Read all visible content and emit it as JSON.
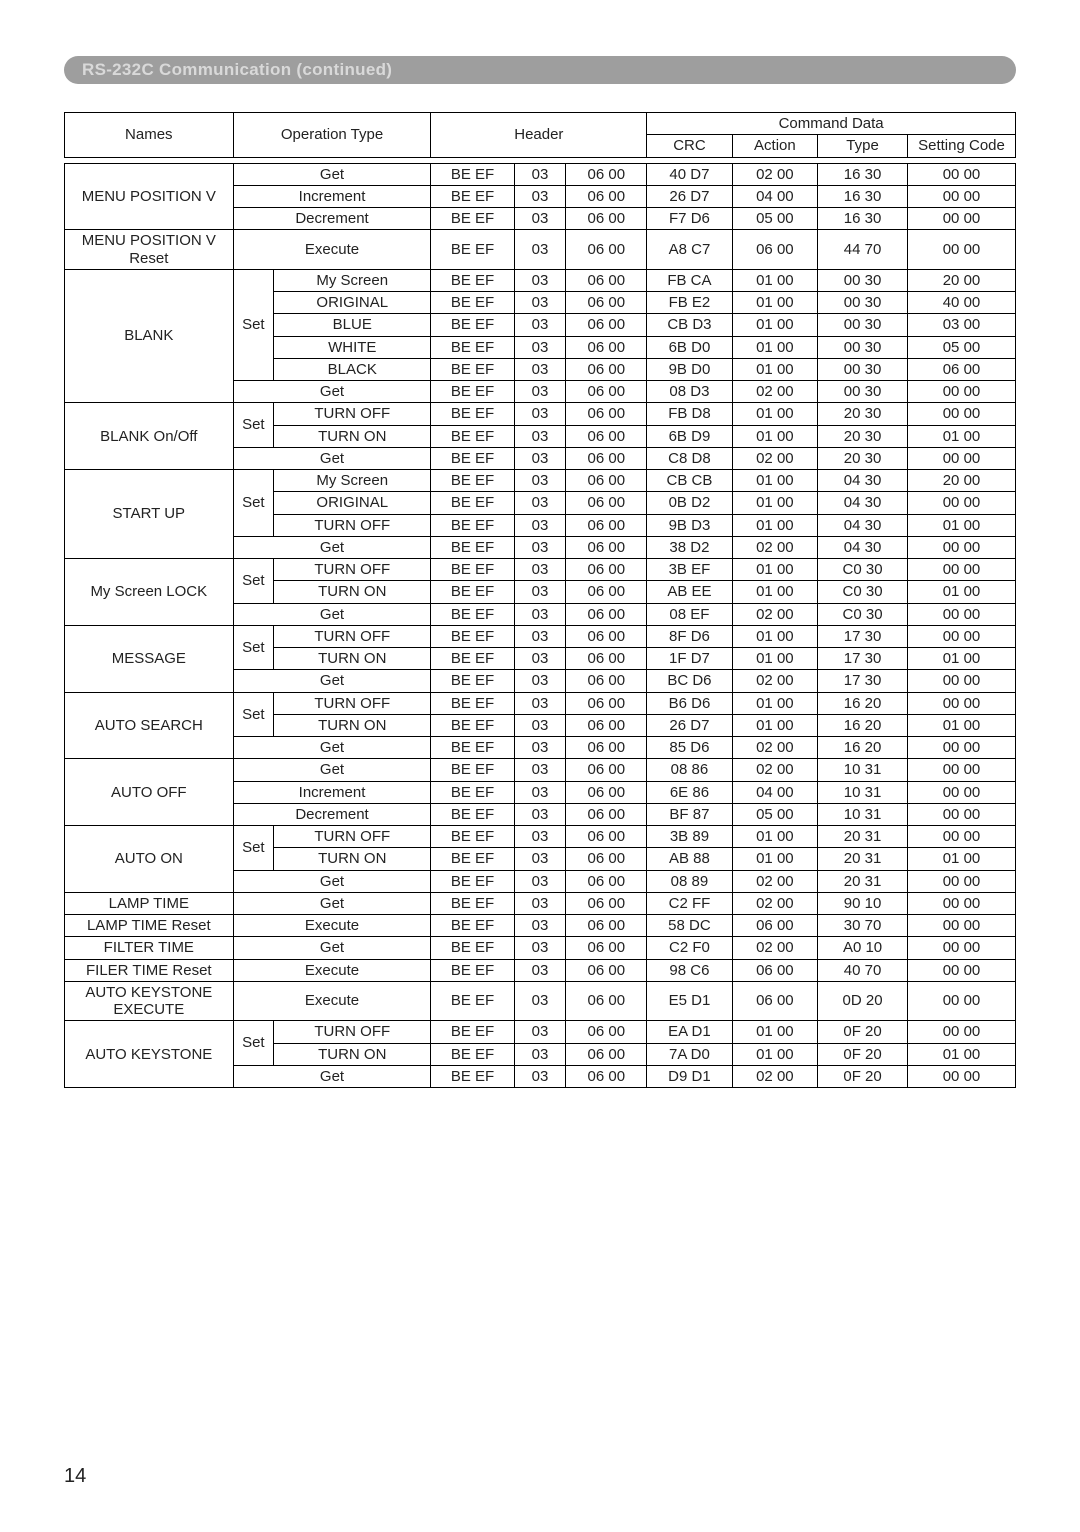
{
  "title": "RS-232C Communication (continued)",
  "pageNumber": "14",
  "columns": {
    "names": "Names",
    "operationType": "Operation Type",
    "header": "Header",
    "commandData": "Command Data",
    "crc": "CRC",
    "action": "Action",
    "type": "Type",
    "settingCode": "Setting Code"
  },
  "colWidths": {
    "names": 150,
    "opset": 36,
    "opval": 140,
    "h1": 74,
    "h2": 46,
    "h3": 72,
    "crc": 76,
    "action": 76,
    "type": 80,
    "settingCode": 96
  },
  "colors": {
    "barBg": "#9e9e9e",
    "barText": "#d9d9d9",
    "border": "#000000",
    "pageBg": "#ffffff",
    "text": "#222222"
  },
  "typography": {
    "titleFontSize": 17,
    "titleFontWeight": "bold",
    "tableFontSize": 15,
    "pageNumFontSize": 20,
    "fontFamily": "Arial"
  },
  "groups": [
    {
      "name": "MENU POSITION V",
      "rows": [
        {
          "opFull": "Get",
          "h1": "BE  EF",
          "h2": "03",
          "h3": "06  00",
          "crc": "40  D7",
          "action": "02  00",
          "type": "16  30",
          "set": "00  00"
        },
        {
          "opFull": "Increment",
          "h1": "BE  EF",
          "h2": "03",
          "h3": "06  00",
          "crc": "26  D7",
          "action": "04  00",
          "type": "16  30",
          "set": "00  00"
        },
        {
          "opFull": "Decrement",
          "h1": "BE  EF",
          "h2": "03",
          "h3": "06  00",
          "crc": "F7  D6",
          "action": "05  00",
          "type": "16  30",
          "set": "00  00"
        }
      ]
    },
    {
      "name": "MENU POSITION V\nReset",
      "rows": [
        {
          "opFull": "Execute",
          "h1": "BE  EF",
          "h2": "03",
          "h3": "06  00",
          "crc": "A8  C7",
          "action": "06  00",
          "type": "44  70",
          "set": "00  00"
        }
      ]
    },
    {
      "name": "BLANK",
      "rows": [
        {
          "opSet": "Set",
          "opVal": "My Screen",
          "h1": "BE  EF",
          "h2": "03",
          "h3": "06  00",
          "crc": "FB  CA",
          "action": "01  00",
          "type": "00  30",
          "set": "20  00"
        },
        {
          "opVal": "ORIGINAL",
          "h1": "BE  EF",
          "h2": "03",
          "h3": "06  00",
          "crc": "FB  E2",
          "action": "01  00",
          "type": "00  30",
          "set": "40  00"
        },
        {
          "opVal": "BLUE",
          "h1": "BE  EF",
          "h2": "03",
          "h3": "06  00",
          "crc": "CB  D3",
          "action": "01  00",
          "type": "00  30",
          "set": "03  00"
        },
        {
          "opVal": "WHITE",
          "h1": "BE  EF",
          "h2": "03",
          "h3": "06  00",
          "crc": "6B  D0",
          "action": "01  00",
          "type": "00  30",
          "set": "05  00"
        },
        {
          "opVal": "BLACK",
          "h1": "BE  EF",
          "h2": "03",
          "h3": "06  00",
          "crc": "9B  D0",
          "action": "01  00",
          "type": "00  30",
          "set": "06  00"
        },
        {
          "opFull": "Get",
          "h1": "BE  EF",
          "h2": "03",
          "h3": "06  00",
          "crc": "08  D3",
          "action": "02  00",
          "type": "00  30",
          "set": "00  00"
        }
      ],
      "setSpan": 5
    },
    {
      "name": "BLANK On/Off",
      "rows": [
        {
          "opSet": "Set",
          "opVal": "TURN OFF",
          "h1": "BE  EF",
          "h2": "03",
          "h3": "06  00",
          "crc": "FB  D8",
          "action": "01  00",
          "type": "20  30",
          "set": "00  00"
        },
        {
          "opVal": "TURN ON",
          "h1": "BE  EF",
          "h2": "03",
          "h3": "06  00",
          "crc": "6B  D9",
          "action": "01  00",
          "type": "20  30",
          "set": "01  00"
        },
        {
          "opFull": "Get",
          "h1": "BE  EF",
          "h2": "03",
          "h3": "06  00",
          "crc": "C8  D8",
          "action": "02  00",
          "type": "20  30",
          "set": "00  00"
        }
      ],
      "setSpan": 2
    },
    {
      "name": "START UP",
      "rows": [
        {
          "opSet": "Set",
          "opVal": "My Screen",
          "h1": "BE  EF",
          "h2": "03",
          "h3": "06  00",
          "crc": "CB  CB",
          "action": "01  00",
          "type": "04  30",
          "set": "20  00"
        },
        {
          "opVal": "ORIGINAL",
          "h1": "BE  EF",
          "h2": "03",
          "h3": "06  00",
          "crc": "0B  D2",
          "action": "01  00",
          "type": "04  30",
          "set": "00  00"
        },
        {
          "opVal": "TURN OFF",
          "h1": "BE  EF",
          "h2": "03",
          "h3": "06  00",
          "crc": "9B  D3",
          "action": "01  00",
          "type": "04  30",
          "set": "01  00"
        },
        {
          "opFull": "Get",
          "h1": "BE  EF",
          "h2": "03",
          "h3": "06  00",
          "crc": "38  D2",
          "action": "02  00",
          "type": "04  30",
          "set": "00  00"
        }
      ],
      "setSpan": 3
    },
    {
      "name": "My Screen LOCK",
      "rows": [
        {
          "opSet": "Set",
          "opVal": "TURN OFF",
          "h1": "BE  EF",
          "h2": "03",
          "h3": "06  00",
          "crc": "3B  EF",
          "action": "01  00",
          "type": "C0  30",
          "set": "00  00"
        },
        {
          "opVal": "TURN ON",
          "h1": "BE  EF",
          "h2": "03",
          "h3": "06  00",
          "crc": "AB  EE",
          "action": "01  00",
          "type": "C0  30",
          "set": "01  00"
        },
        {
          "opFull": "Get",
          "h1": "BE  EF",
          "h2": "03",
          "h3": "06  00",
          "crc": "08  EF",
          "action": "02  00",
          "type": "C0  30",
          "set": "00  00"
        }
      ],
      "setSpan": 2
    },
    {
      "name": "MESSAGE",
      "rows": [
        {
          "opSet": "Set",
          "opVal": "TURN OFF",
          "h1": "BE  EF",
          "h2": "03",
          "h3": "06  00",
          "crc": "8F  D6",
          "action": "01  00",
          "type": "17  30",
          "set": "00  00"
        },
        {
          "opVal": "TURN ON",
          "h1": "BE  EF",
          "h2": "03",
          "h3": "06  00",
          "crc": "1F  D7",
          "action": "01  00",
          "type": "17  30",
          "set": "01  00"
        },
        {
          "opFull": "Get",
          "h1": "BE  EF",
          "h2": "03",
          "h3": "06  00",
          "crc": "BC  D6",
          "action": "02  00",
          "type": "17  30",
          "set": "00  00"
        }
      ],
      "setSpan": 2
    },
    {
      "name": "AUTO SEARCH",
      "rows": [
        {
          "opSet": "Set",
          "opVal": "TURN OFF",
          "h1": "BE  EF",
          "h2": "03",
          "h3": "06  00",
          "crc": "B6  D6",
          "action": "01  00",
          "type": "16  20",
          "set": "00  00"
        },
        {
          "opVal": "TURN ON",
          "h1": "BE  EF",
          "h2": "03",
          "h3": "06  00",
          "crc": "26  D7",
          "action": "01  00",
          "type": "16  20",
          "set": "01  00"
        },
        {
          "opFull": "Get",
          "h1": "BE  EF",
          "h2": "03",
          "h3": "06  00",
          "crc": "85 D6",
          "action": "02 00",
          "type": "16 20",
          "set": "00 00"
        }
      ],
      "setSpan": 2
    },
    {
      "name": "AUTO OFF",
      "rows": [
        {
          "opFull": "Get",
          "h1": "BE  EF",
          "h2": "03",
          "h3": "06  00",
          "crc": "08  86",
          "action": "02  00",
          "type": "10  31",
          "set": "00  00"
        },
        {
          "opFull": "Increment",
          "h1": "BE  EF",
          "h2": "03",
          "h3": "06  00",
          "crc": "6E  86",
          "action": "04  00",
          "type": "10  31",
          "set": "00  00"
        },
        {
          "opFull": "Decrement",
          "h1": "BE  EF",
          "h2": "03",
          "h3": "06  00",
          "crc": "BF  87",
          "action": "05  00",
          "type": "10  31",
          "set": "00  00"
        }
      ]
    },
    {
      "name": "AUTO ON",
      "rows": [
        {
          "opSet": "Set",
          "opVal": "TURN OFF",
          "h1": "BE  EF",
          "h2": "03",
          "h3": "06  00",
          "crc": "3B 89",
          "action": "01 00",
          "type": "20 31",
          "set": "00 00"
        },
        {
          "opVal": "TURN ON",
          "h1": "BE  EF",
          "h2": "03",
          "h3": "06  00",
          "crc": "AB 88",
          "action": "01 00",
          "type": "20 31",
          "set": "01 00"
        },
        {
          "opFull": "Get",
          "h1": "BE  EF",
          "h2": "03",
          "h3": "06  00",
          "crc": "08 89",
          "action": "02 00",
          "type": "20 31",
          "set": "00 00"
        }
      ],
      "setSpan": 2
    },
    {
      "name": "LAMP TIME",
      "rows": [
        {
          "opFull": "Get",
          "h1": "BE  EF",
          "h2": "03",
          "h3": "06  00",
          "crc": "C2  FF",
          "action": "02  00",
          "type": "90  10",
          "set": "00  00"
        }
      ]
    },
    {
      "name": "LAMP TIME Reset",
      "rows": [
        {
          "opFull": "Execute",
          "h1": "BE  EF",
          "h2": "03",
          "h3": "06  00",
          "crc": "58  DC",
          "action": "06  00",
          "type": "30  70",
          "set": "00  00"
        }
      ]
    },
    {
      "name": "FILTER TIME",
      "rows": [
        {
          "opFull": "Get",
          "h1": "BE  EF",
          "h2": "03",
          "h3": "06  00",
          "crc": "C2  F0",
          "action": "02  00",
          "type": "A0  10",
          "set": "00  00"
        }
      ]
    },
    {
      "name": "FILER TIME Reset",
      "rows": [
        {
          "opFull": "Execute",
          "h1": "BE  EF",
          "h2": "03",
          "h3": "06  00",
          "crc": "98  C6",
          "action": "06  00",
          "type": "40  70",
          "set": "00  00"
        }
      ]
    },
    {
      "name": "AUTO KEYSTONE\nEXECUTE",
      "rows": [
        {
          "opFull": "Execute",
          "h1": "BE  EF",
          "h2": "03",
          "h3": "06  00",
          "crc": "E5 D1",
          "action": "06 00",
          "type": "0D  20",
          "set": "00 00"
        }
      ]
    },
    {
      "name": "AUTO KEYSTONE",
      "rows": [
        {
          "opSet": "Set",
          "opVal": "TURN OFF",
          "h1": "BE  EF",
          "h2": "03",
          "h3": "06  00",
          "crc": "EA D1",
          "action": "01 00",
          "type": "0F  20",
          "set": "00 00"
        },
        {
          "opVal": "TURN ON",
          "h1": "BE  EF",
          "h2": "03",
          "h3": "06  00",
          "crc": "7A D0",
          "action": "01 00",
          "type": "0F  20",
          "set": "01 00"
        },
        {
          "opFull": "Get",
          "h1": "BE  EF",
          "h2": "03",
          "h3": "06  00",
          "crc": "D9 D1",
          "action": "02 00",
          "type": "0F  20",
          "set": "00 00"
        }
      ],
      "setSpan": 2
    }
  ]
}
